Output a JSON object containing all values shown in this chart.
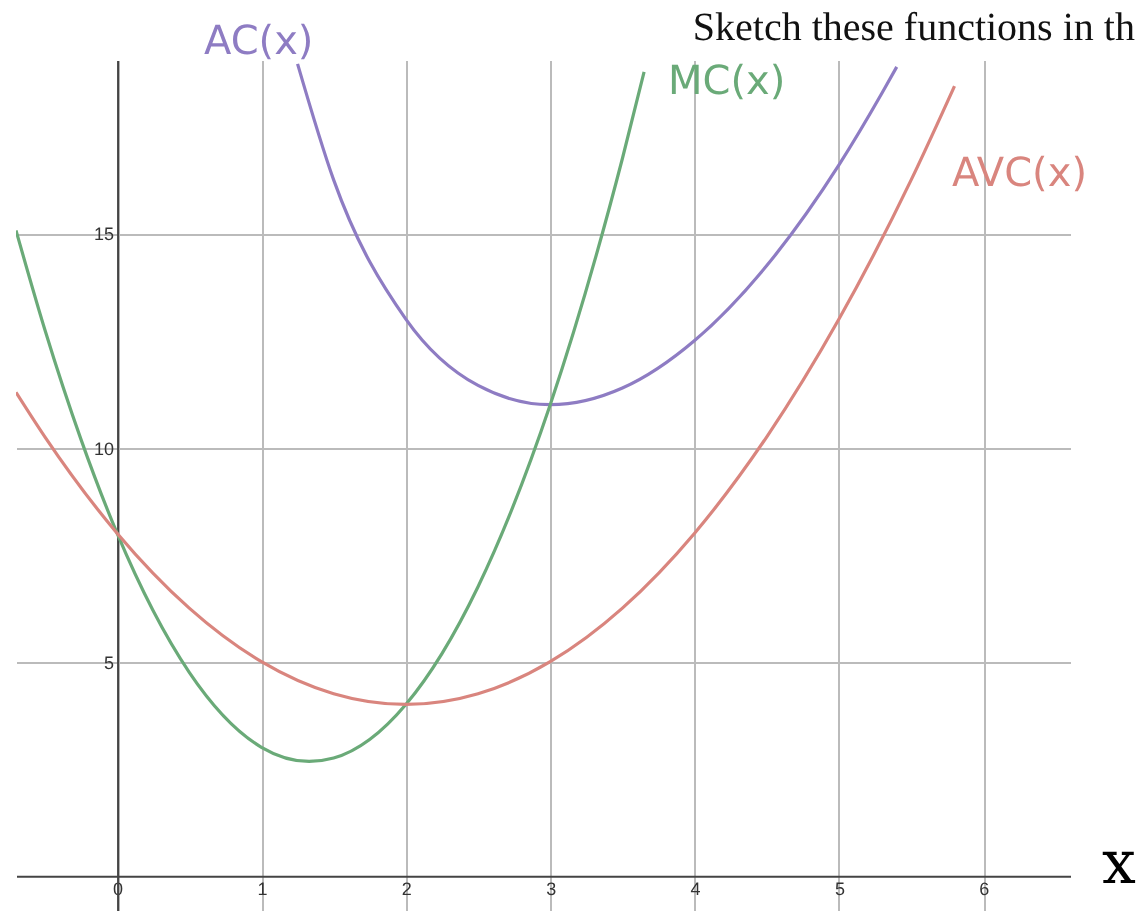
{
  "chart_data": {
    "type": "line",
    "title": "Sketch these functions in th",
    "xlabel": "x",
    "xlim": [
      -0.7,
      6.6
    ],
    "ylim": [
      -0.8,
      19.05
    ],
    "xticks": [
      0,
      1,
      2,
      3,
      4,
      5,
      6
    ],
    "yticks": [
      5,
      10,
      15
    ],
    "grid": true,
    "legend": false,
    "series": [
      {
        "color": "#8e7cc3",
        "x": [
          1.25,
          1.5,
          2,
          2.5,
          3,
          3.5,
          4,
          4.5,
          5,
          5.3,
          5.4
        ],
        "values": [
          18.96,
          16.25,
          13,
          11.45,
          11,
          11.39,
          12.5,
          14.25,
          16.6,
          18.29,
          18.89
        ]
      },
      {
        "color": "#6aaa78",
        "x": [
          -0.7,
          -0.5,
          -0.25,
          0,
          0.5,
          1,
          1.33,
          1.5,
          2,
          2.5,
          3,
          3.5,
          3.65
        ],
        "values": [
          15.07,
          12.75,
          10.19,
          8,
          4.75,
          3,
          2.67,
          2.75,
          4,
          6.75,
          11,
          16.75,
          18.77
        ]
      },
      {
        "color": "#d9857e",
        "x": [
          -0.7,
          -0.5,
          0,
          0.5,
          1,
          1.5,
          2,
          2.5,
          3,
          3.5,
          4,
          4.5,
          5,
          5.5,
          5.8
        ],
        "values": [
          11.29,
          10.25,
          8,
          6.25,
          5,
          4.25,
          4,
          4.25,
          5,
          6.25,
          8,
          10.25,
          13,
          16.25,
          18.44
        ]
      }
    ],
    "annotations": [
      "AC(x)",
      "MC(x)",
      "AVC(x)"
    ]
  }
}
